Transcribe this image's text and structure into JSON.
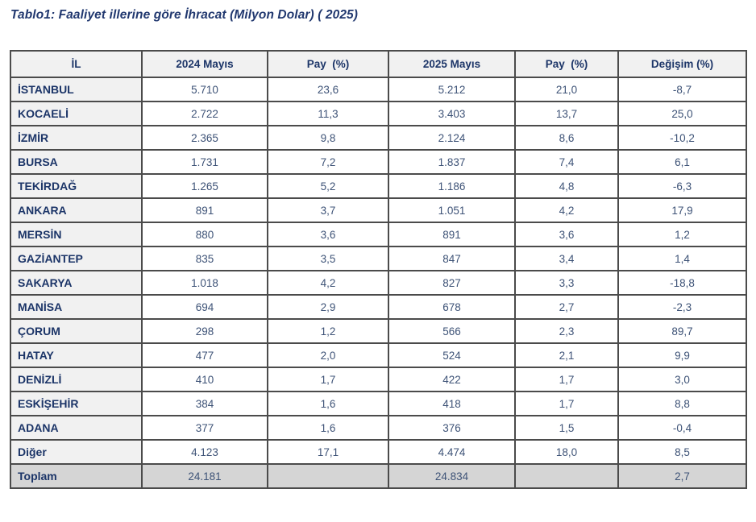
{
  "page_title": "Tablo1: Faaliyet illerine göre İhracat (Milyon Dolar) ( 2025)",
  "colors": {
    "title_text": "#21386f",
    "header_text": "#1c3568",
    "row_label_text": "#1c3568",
    "value_text": "#3e5377",
    "header_bg": "#f1f1f1",
    "label_column_bg": "#f1f1f1",
    "total_row_bg": "#d5d5d5",
    "border": "#4b4b4b"
  },
  "table": {
    "columns": [
      "İL",
      "2024 Mayıs",
      "Pay  (%)",
      "2025 Mayıs",
      "Pay  (%)",
      "Değişim (%)"
    ],
    "rows": [
      {
        "total": false,
        "cells": [
          "İSTANBUL",
          "5.710",
          "23,6",
          "5.212",
          "21,0",
          "-8,7"
        ]
      },
      {
        "total": false,
        "cells": [
          "KOCAELİ",
          "2.722",
          "11,3",
          "3.403",
          "13,7",
          "25,0"
        ]
      },
      {
        "total": false,
        "cells": [
          "İZMİR",
          "2.365",
          "9,8",
          "2.124",
          "8,6",
          "-10,2"
        ]
      },
      {
        "total": false,
        "cells": [
          "BURSA",
          "1.731",
          "7,2",
          "1.837",
          "7,4",
          "6,1"
        ]
      },
      {
        "total": false,
        "cells": [
          "TEKİRDAĞ",
          "1.265",
          "5,2",
          "1.186",
          "4,8",
          "-6,3"
        ]
      },
      {
        "total": false,
        "cells": [
          "ANKARA",
          "891",
          "3,7",
          "1.051",
          "4,2",
          "17,9"
        ]
      },
      {
        "total": false,
        "cells": [
          "MERSİN",
          "880",
          "3,6",
          "891",
          "3,6",
          "1,2"
        ]
      },
      {
        "total": false,
        "cells": [
          "GAZİANTEP",
          "835",
          "3,5",
          "847",
          "3,4",
          "1,4"
        ]
      },
      {
        "total": false,
        "cells": [
          "SAKARYA",
          "1.018",
          "4,2",
          "827",
          "3,3",
          "-18,8"
        ]
      },
      {
        "total": false,
        "cells": [
          "MANİSA",
          "694",
          "2,9",
          "678",
          "2,7",
          "-2,3"
        ]
      },
      {
        "total": false,
        "cells": [
          "ÇORUM",
          "298",
          "1,2",
          "566",
          "2,3",
          "89,7"
        ]
      },
      {
        "total": false,
        "cells": [
          "HATAY",
          "477",
          "2,0",
          "524",
          "2,1",
          "9,9"
        ]
      },
      {
        "total": false,
        "cells": [
          "DENİZLİ",
          "410",
          "1,7",
          "422",
          "1,7",
          "3,0"
        ]
      },
      {
        "total": false,
        "cells": [
          "ESKİŞEHİR",
          "384",
          "1,6",
          "418",
          "1,7",
          "8,8"
        ]
      },
      {
        "total": false,
        "cells": [
          "ADANA",
          "377",
          "1,6",
          "376",
          "1,5",
          "-0,4"
        ]
      },
      {
        "total": false,
        "cells": [
          "Diğer",
          "4.123",
          "17,1",
          "4.474",
          "18,0",
          "8,5"
        ]
      },
      {
        "total": true,
        "cells": [
          "Toplam",
          "24.181",
          "",
          "24.834",
          "",
          "2,7"
        ]
      }
    ]
  }
}
